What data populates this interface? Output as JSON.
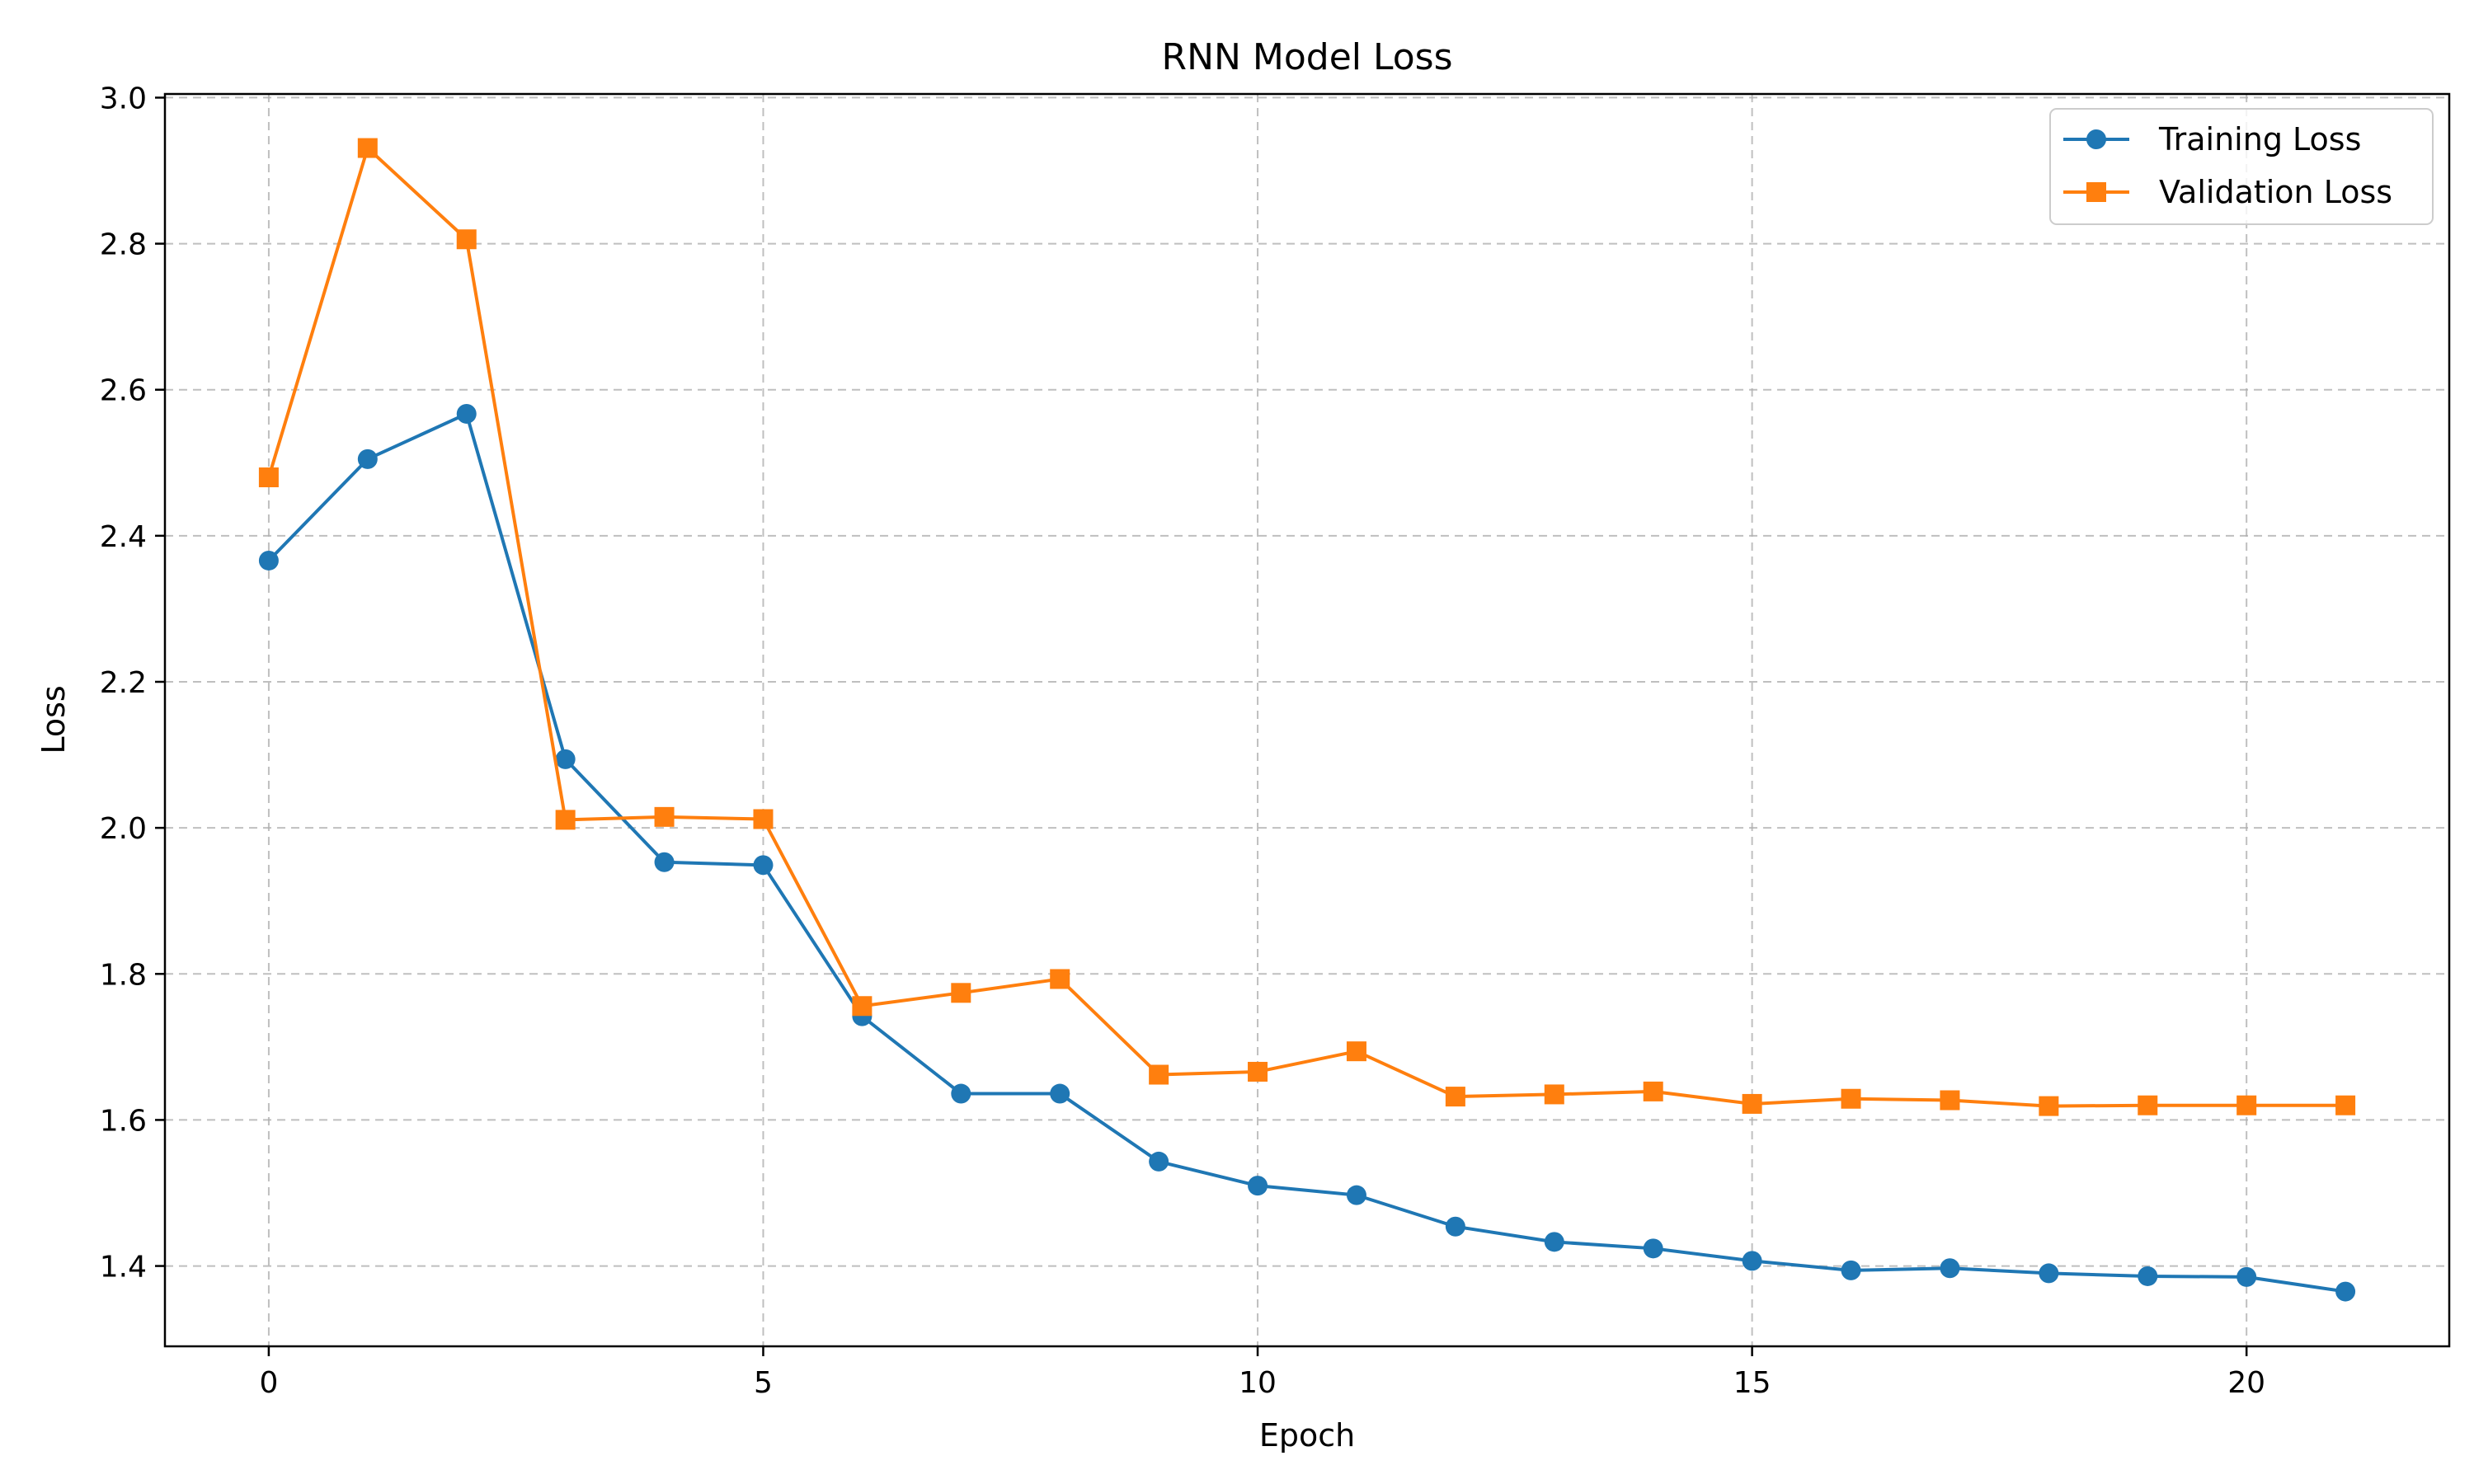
{
  "chart_data": {
    "type": "line",
    "title": "RNN Model Loss",
    "xlabel": "Epoch",
    "ylabel": "Loss",
    "xlim": [
      -1.05,
      22.05
    ],
    "ylim": [
      1.29,
      3.005
    ],
    "x_ticks": [
      0,
      5,
      10,
      15,
      20
    ],
    "y_ticks": [
      1.4,
      1.6,
      1.8,
      2.0,
      2.2,
      2.4,
      2.6,
      2.8,
      3.0
    ],
    "y_tick_labels": [
      "1.4",
      "1.6",
      "1.8",
      "2.0",
      "2.2",
      "2.4",
      "2.6",
      "2.8",
      "3.0"
    ],
    "grid": true,
    "legend_position": "top-right",
    "x": [
      0,
      1,
      2,
      3,
      4,
      5,
      6,
      7,
      8,
      9,
      10,
      11,
      12,
      13,
      14,
      15,
      16,
      17,
      18,
      19,
      20,
      21
    ],
    "series": [
      {
        "name": "Training Loss",
        "color": "#1f77b4",
        "marker": "circle",
        "values": [
          2.366,
          2.505,
          2.567,
          2.094,
          1.953,
          1.949,
          1.742,
          1.636,
          1.636,
          1.543,
          1.51,
          1.497,
          1.454,
          1.433,
          1.424,
          1.407,
          1.394,
          1.397,
          1.39,
          1.386,
          1.385,
          1.365
        ]
      },
      {
        "name": "Validation Loss",
        "color": "#ff7f0e",
        "marker": "square",
        "values": [
          2.48,
          2.931,
          2.806,
          2.011,
          2.015,
          2.012,
          1.756,
          1.774,
          1.793,
          1.662,
          1.666,
          1.694,
          1.632,
          1.635,
          1.639,
          1.622,
          1.629,
          1.627,
          1.619,
          1.62,
          1.62,
          1.62
        ]
      }
    ]
  }
}
